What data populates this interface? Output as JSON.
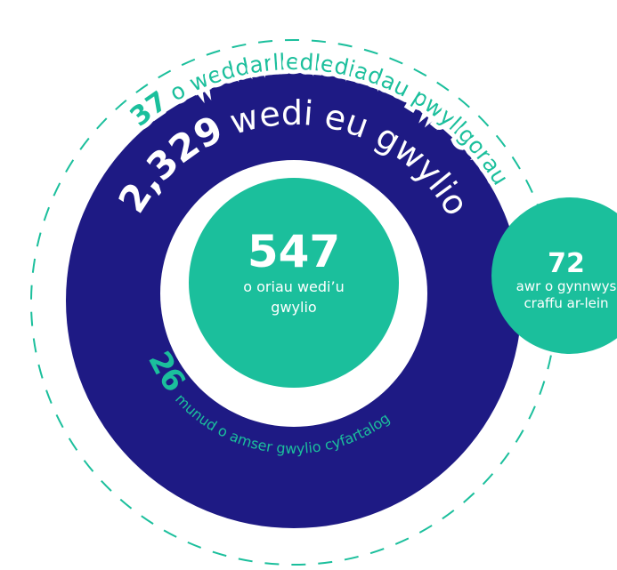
{
  "outer": {
    "number": 37,
    "label": "o weddarlledlediadau pwyllgorau"
  },
  "watched": {
    "number": "2,329",
    "label": "wedi eu gwylio"
  },
  "hours": {
    "number": 547,
    "label_line1": "o oriau wedi’u",
    "label_line2": "gwylio"
  },
  "average": {
    "number": 26,
    "label": "munud o amser gwylio cyfartalog"
  },
  "scrutiny": {
    "number": 72,
    "label_line1": "awr o gynnwys",
    "label_line2": "craffu ar-lein"
  }
}
